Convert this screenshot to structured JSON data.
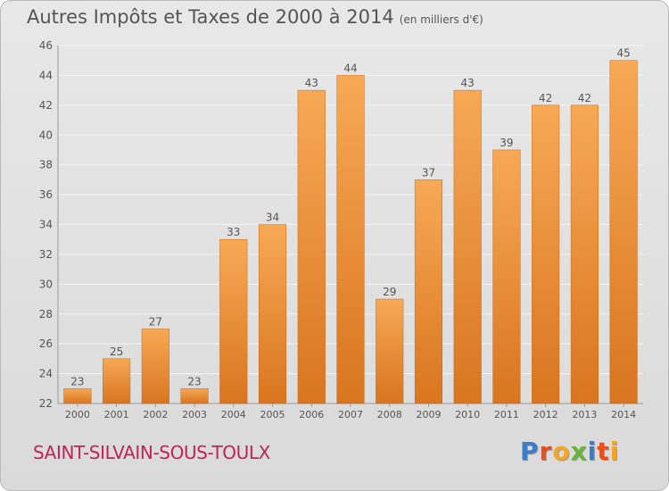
{
  "header": {
    "title": "Autres Impôts et Taxes de 2000 à 2014",
    "subtitle": "(en milliers d'€)"
  },
  "footer": {
    "commune": "SAINT-SILVAIN-SOUS-TOULX",
    "logo_letters": [
      "P",
      "r",
      "o",
      "x",
      "i",
      "t",
      "i"
    ]
  },
  "colors": {
    "bar_top": "#f7a956",
    "bar_bottom": "#d9751f",
    "grid": "#f4f4f4",
    "axis_text": "#555555",
    "commune": "#c0235a",
    "logo": [
      "#3a7dc9",
      "#e94e1b",
      "#f5a623",
      "#6bb33c",
      "#3a7dc9",
      "#e94e1b",
      "#f5a623"
    ]
  },
  "chart_data": {
    "type": "bar",
    "title": "Autres Impôts et Taxes de 2000 à 2014",
    "subtitle": "(en milliers d'€)",
    "xlabel": "",
    "ylabel": "",
    "categories": [
      "2000",
      "2001",
      "2002",
      "2003",
      "2004",
      "2005",
      "2006",
      "2007",
      "2008",
      "2009",
      "2010",
      "2011",
      "2012",
      "2013",
      "2014"
    ],
    "values": [
      23,
      25,
      27,
      23,
      33,
      34,
      43,
      44,
      29,
      37,
      43,
      39,
      42,
      42,
      45
    ],
    "ylim": [
      22,
      46
    ],
    "yticks": [
      22,
      24,
      26,
      28,
      30,
      32,
      34,
      36,
      38,
      40,
      42,
      44,
      46
    ],
    "grid": true,
    "legend": "none"
  }
}
